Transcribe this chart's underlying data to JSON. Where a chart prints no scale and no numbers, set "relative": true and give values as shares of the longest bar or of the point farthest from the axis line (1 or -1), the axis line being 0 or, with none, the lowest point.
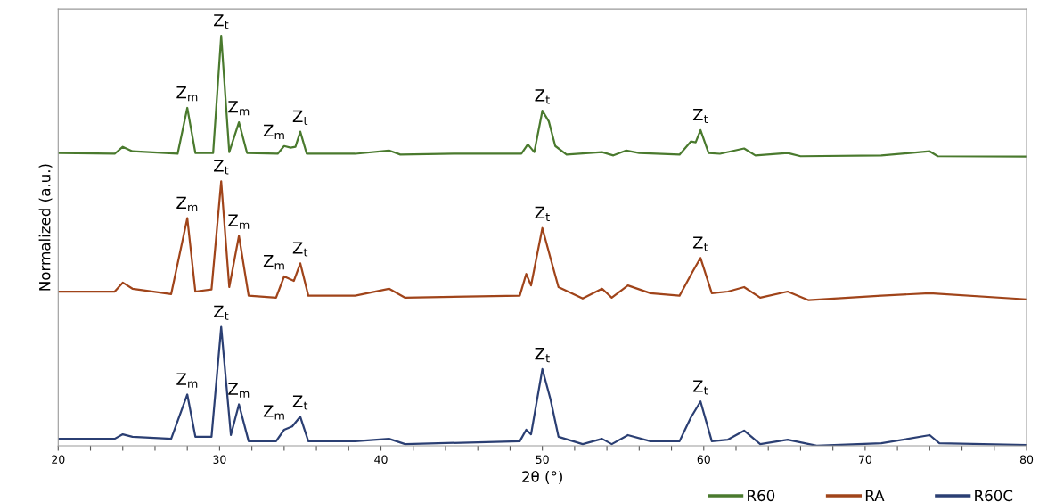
{
  "chart_data": {
    "type": "line",
    "relative": true,
    "xlabel": "2θ (°)",
    "ylabel": "Normalized (a.u.)",
    "xlim": [
      20,
      80
    ],
    "xticks": [
      20,
      {
        "value": 22,
        "label": null
      },
      {
        "value": 24,
        "label": null
      },
      {
        "value": 26,
        "label": null
      },
      {
        "value": 28,
        "label": null
      },
      30,
      {
        "value": 32,
        "label": null
      },
      {
        "value": 34,
        "label": null
      },
      {
        "value": 36,
        "label": null
      },
      {
        "value": 38,
        "label": null
      },
      40,
      {
        "value": 42,
        "label": null
      },
      {
        "value": 44,
        "label": null
      },
      {
        "value": 46,
        "label": null
      },
      {
        "value": 48,
        "label": null
      },
      50,
      {
        "value": 52,
        "label": null
      },
      {
        "value": 54,
        "label": null
      },
      {
        "value": 56,
        "label": null
      },
      {
        "value": 58,
        "label": null
      },
      60,
      {
        "value": 62,
        "label": null
      },
      {
        "value": 64,
        "label": null
      },
      {
        "value": 66,
        "label": null
      },
      {
        "value": 68,
        "label": null
      },
      70,
      {
        "value": 72,
        "label": null
      },
      {
        "value": 74,
        "label": null
      },
      {
        "value": 76,
        "label": null
      },
      {
        "value": 78,
        "label": null
      },
      80
    ],
    "tick_labels": "x",
    "grid": false,
    "legend": "bottom right",
    "marker": "none",
    "line_style": "solid",
    "series": [
      {
        "name": "R60",
        "color": "#4a7a2e",
        "x": [
          20,
          23.5,
          24,
          24.6,
          27.4,
          28,
          28.5,
          29.6,
          30.1,
          30.6,
          31.2,
          31.7,
          33.6,
          34,
          34.4,
          34.7,
          35,
          35.4,
          38.4,
          40.5,
          41.2,
          44.5,
          48.7,
          49.1,
          49.5,
          50.0,
          50.4,
          50.8,
          51.5,
          53.7,
          54.4,
          55.2,
          56,
          58.5,
          59.2,
          59.5,
          59.8,
          60.3,
          61,
          62.5,
          63.2,
          65.2,
          66,
          71,
          74,
          74.5,
          80
        ],
        "values": [
          0.714,
          0.712,
          0.729,
          0.718,
          0.712,
          0.824,
          0.714,
          0.714,
          1.0,
          0.716,
          0.789,
          0.714,
          0.712,
          0.731,
          0.727,
          0.729,
          0.766,
          0.712,
          0.712,
          0.72,
          0.71,
          0.712,
          0.712,
          0.735,
          0.716,
          0.817,
          0.791,
          0.731,
          0.71,
          0.716,
          0.708,
          0.72,
          0.714,
          0.71,
          0.742,
          0.74,
          0.77,
          0.714,
          0.712,
          0.725,
          0.708,
          0.714,
          0.706,
          0.708,
          0.718,
          0.706,
          0.705
        ]
      },
      {
        "name": "RA",
        "color": "#a0441a",
        "x": [
          20,
          23.5,
          24,
          24.6,
          27,
          28,
          28.5,
          29.5,
          30.1,
          30.6,
          31.2,
          31.8,
          33.5,
          34,
          34.6,
          35,
          35.5,
          38.4,
          40.5,
          41.5,
          48.6,
          49,
          49.3,
          50,
          50.5,
          51,
          52.5,
          53.7,
          54.3,
          55.3,
          56.7,
          58.5,
          59.3,
          59.8,
          60.5,
          61.5,
          62.5,
          63.5,
          65.2,
          66.5,
          71,
          74,
          80
        ],
        "values": [
          0.376,
          0.376,
          0.398,
          0.383,
          0.37,
          0.555,
          0.376,
          0.381,
          0.645,
          0.387,
          0.512,
          0.366,
          0.361,
          0.413,
          0.402,
          0.445,
          0.366,
          0.366,
          0.383,
          0.361,
          0.366,
          0.419,
          0.391,
          0.531,
          0.458,
          0.387,
          0.359,
          0.383,
          0.361,
          0.391,
          0.372,
          0.366,
          0.424,
          0.458,
          0.372,
          0.376,
          0.387,
          0.361,
          0.376,
          0.355,
          0.366,
          0.372,
          0.357
        ]
      },
      {
        "name": "R60C",
        "color": "#2b3f73",
        "x": [
          20,
          23.5,
          24,
          24.6,
          27,
          28,
          28.5,
          29.5,
          30.1,
          30.7,
          31.2,
          31.8,
          33.5,
          34,
          34.5,
          35,
          35.5,
          38.4,
          40.5,
          41.5,
          48.6,
          49,
          49.3,
          50,
          50.5,
          51,
          52.5,
          53.7,
          54.3,
          55.3,
          56.7,
          58.5,
          59.2,
          59.8,
          60.5,
          61.5,
          62.5,
          63.5,
          65.2,
          67,
          71,
          74,
          74.6,
          80
        ],
        "values": [
          0.017,
          0.017,
          0.028,
          0.022,
          0.017,
          0.125,
          0.022,
          0.022,
          0.29,
          0.026,
          0.101,
          0.011,
          0.011,
          0.039,
          0.047,
          0.071,
          0.011,
          0.011,
          0.017,
          0.004,
          0.011,
          0.039,
          0.028,
          0.187,
          0.114,
          0.022,
          0.004,
          0.017,
          0.004,
          0.026,
          0.011,
          0.011,
          0.069,
          0.108,
          0.011,
          0.015,
          0.037,
          0.004,
          0.015,
          0.0,
          0.006,
          0.026,
          0.006,
          0.002
        ]
      }
    ],
    "annotations": [
      {
        "text": "Z$_{m}$",
        "x": 28,
        "y": 0.824
      },
      {
        "text": "Z$_{t}$",
        "x": 30.1,
        "y": 1.0
      },
      {
        "text": "Z$_{m}$",
        "x": 31.2,
        "y": 0.789
      },
      {
        "text": "Z$_{m}$",
        "x": 34,
        "y": 0.731
      },
      {
        "text": "Z$_{t}$",
        "x": 35,
        "y": 0.766
      },
      {
        "text": "Z$_{t}$",
        "x": 50,
        "y": 0.817
      },
      {
        "text": "Z$_{t}$",
        "x": 59.8,
        "y": 0.77
      },
      {
        "text": "Z$_{m}$",
        "x": 28,
        "y": 0.555
      },
      {
        "text": "Z$_{t}$",
        "x": 30.1,
        "y": 0.645
      },
      {
        "text": "Z$_{m}$",
        "x": 31.2,
        "y": 0.512
      },
      {
        "text": "Z$_{m}$",
        "x": 34,
        "y": 0.413
      },
      {
        "text": "Z$_{t}$",
        "x": 35,
        "y": 0.445
      },
      {
        "text": "Z$_{t}$",
        "x": 50,
        "y": 0.531
      },
      {
        "text": "Z$_{t}$",
        "x": 59.8,
        "y": 0.458
      },
      {
        "text": "Z$_{m}$",
        "x": 28,
        "y": 0.125
      },
      {
        "text": "Z$_{t}$",
        "x": 30.1,
        "y": 0.29
      },
      {
        "text": "Z$_{m}$",
        "x": 31.2,
        "y": 0.101
      },
      {
        "text": "Z$_{m}$",
        "x": 34,
        "y": 0.047
      },
      {
        "text": "Z$_{t}$",
        "x": 35,
        "y": 0.071
      },
      {
        "text": "Z$_{t}$",
        "x": 50,
        "y": 0.187
      },
      {
        "text": "Z$_{t}$",
        "x": 59.8,
        "y": 0.108
      }
    ]
  }
}
